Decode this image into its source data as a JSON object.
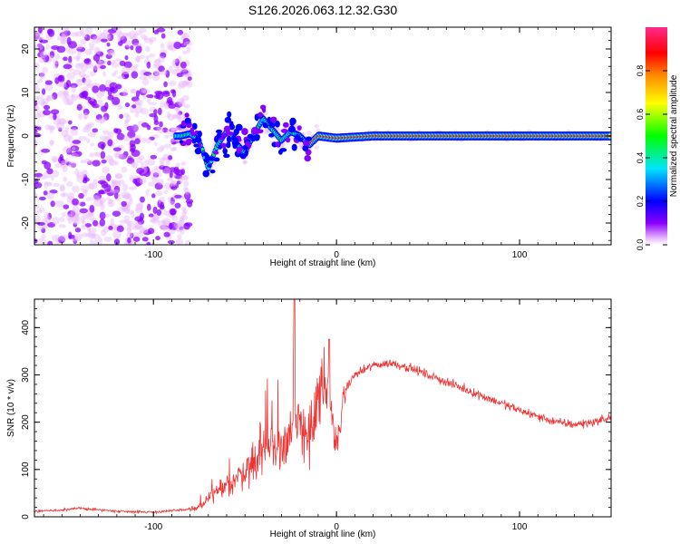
{
  "title": "S126.2026.063.12.32.G30",
  "colors": {
    "line": "#ee3333",
    "axis": "#000000",
    "background": "#ffffff"
  },
  "chart_data": [
    {
      "type": "heatmap",
      "title": "S126.2026.063.12.32.G30",
      "xlabel": "Height of straight line (km)",
      "ylabel": "Frequency (Hz)",
      "xlim": [
        -165,
        150
      ],
      "ylim": [
        -25,
        25
      ],
      "xticks": [
        -100,
        0,
        100
      ],
      "xtick_labels": [
        "-100",
        "0",
        "100"
      ],
      "yticks": [
        -20,
        -10,
        0,
        10,
        20
      ],
      "ytick_labels": [
        "-20",
        "-10",
        "0",
        "10",
        "20"
      ],
      "colorbar": {
        "label": "Normalized spectral amplitude",
        "range": [
          0,
          1
        ],
        "ticks": [
          0,
          0.2,
          0.4,
          0.6,
          0.8
        ],
        "tick_labels": [
          "0.0",
          "0.2",
          "0.4",
          "0.6",
          "0.8"
        ],
        "colormap": [
          "#e9b8ff",
          "#8a00ff",
          "#0000ff",
          "#00e5ff",
          "#00ff00",
          "#ffff00",
          "#ff8800",
          "#ff0000",
          "#ff2a8a"
        ]
      },
      "ridge_frequency_hz": [
        {
          "x": -85,
          "y": 0.0
        },
        {
          "x": -80,
          "y": 0.5
        },
        {
          "x": -75,
          "y": -1.0
        },
        {
          "x": -70,
          "y": -7.5
        },
        {
          "x": -65,
          "y": -2.0
        },
        {
          "x": -60,
          "y": 1.0
        },
        {
          "x": -55,
          "y": -1.5
        },
        {
          "x": -50,
          "y": -4.0
        },
        {
          "x": -45,
          "y": 0.5
        },
        {
          "x": -40,
          "y": 4.0
        },
        {
          "x": -35,
          "y": 1.5
        },
        {
          "x": -30,
          "y": -1.0
        },
        {
          "x": -25,
          "y": 1.0
        },
        {
          "x": -20,
          "y": 0.0
        },
        {
          "x": -15,
          "y": -2.0
        },
        {
          "x": -10,
          "y": 0.0
        },
        {
          "x": 0,
          "y": -0.5
        },
        {
          "x": 20,
          "y": 0.0
        },
        {
          "x": 60,
          "y": 0.0
        },
        {
          "x": 100,
          "y": 0.0
        },
        {
          "x": 150,
          "y": 0.0
        }
      ]
    },
    {
      "type": "line",
      "xlabel": "Height of straight line (km)",
      "ylabel": "SNR (10 * v/v)",
      "xlim": [
        -165,
        150
      ],
      "ylim": [
        0,
        460
      ],
      "xticks": [
        -100,
        0,
        100
      ],
      "xtick_labels": [
        "-100",
        "0",
        "100"
      ],
      "yticks": [
        0,
        100,
        200,
        300,
        400
      ],
      "ytick_labels": [
        "0",
        "100",
        "200",
        "300",
        "400"
      ],
      "series": [
        {
          "name": "SNR",
          "x": [
            -165,
            -150,
            -140,
            -120,
            -100,
            -85,
            -75,
            -70,
            -65,
            -60,
            -55,
            -50,
            -45,
            -40,
            -35,
            -30,
            -25,
            -20,
            -15,
            -10,
            -5,
            0,
            5,
            10,
            20,
            30,
            40,
            50,
            60,
            70,
            80,
            90,
            100,
            110,
            120,
            130,
            140,
            150
          ],
          "y": [
            12,
            14,
            18,
            12,
            10,
            14,
            20,
            35,
            55,
            60,
            80,
            100,
            120,
            140,
            150,
            150,
            180,
            200,
            170,
            240,
            280,
            150,
            270,
            300,
            320,
            325,
            315,
            300,
            285,
            270,
            255,
            240,
            225,
            212,
            200,
            195,
            200,
            210
          ]
        }
      ]
    }
  ]
}
